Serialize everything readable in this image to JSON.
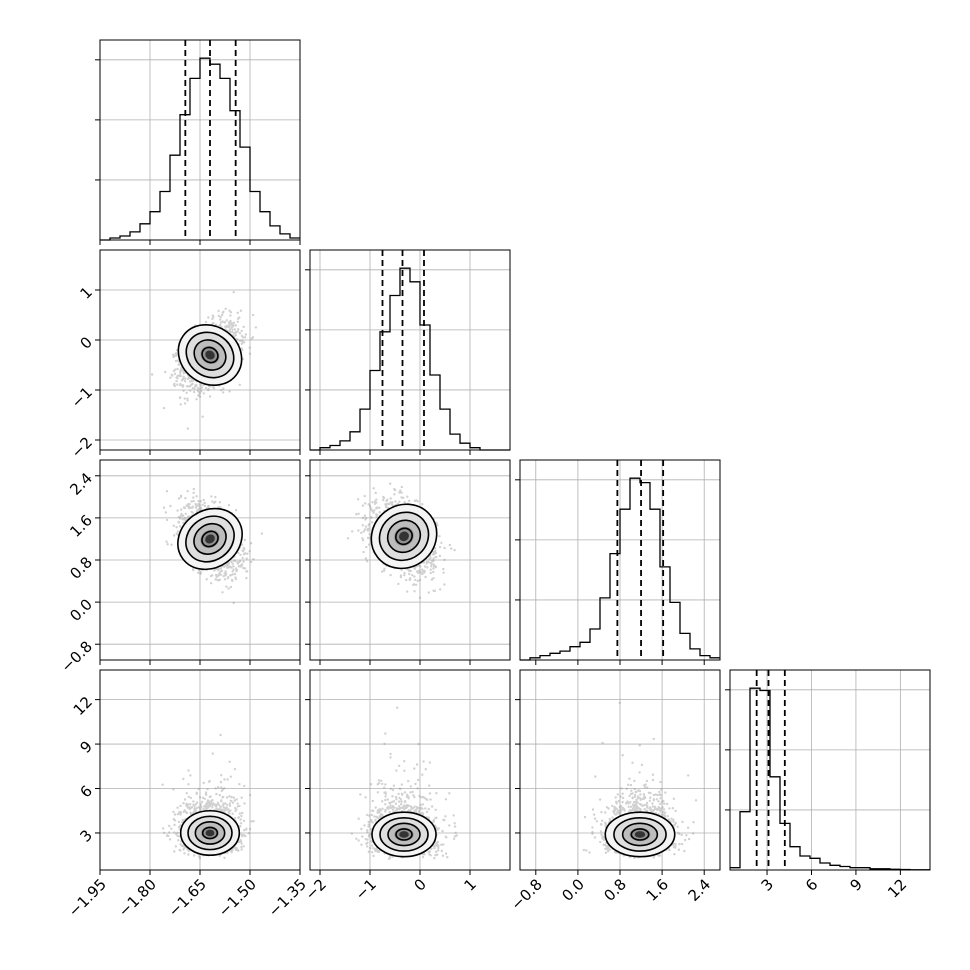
{
  "chart_data": {
    "type": "corner",
    "title": "",
    "grid": true,
    "parameters": [
      {
        "index": 0,
        "range": [
          -1.95,
          -1.35
        ],
        "ticks": [
          -1.95,
          -1.8,
          -1.65,
          -1.5,
          -1.35
        ],
        "tick_labels": [
          "−1.95",
          "−1.80",
          "−1.65",
          "−1.50",
          "−1.35"
        ],
        "quantiles": [
          -1.694,
          -1.62,
          -1.543
        ],
        "hist": {
          "edges_start": -1.95,
          "bin_width": 0.03,
          "counts": [
            0,
            1,
            2,
            4,
            8,
            14,
            24,
            42,
            62,
            80,
            90,
            87,
            80,
            64,
            46,
            24,
            14,
            7,
            3,
            1
          ]
        }
      },
      {
        "index": 1,
        "range": [
          -2.2,
          1.8
        ],
        "ticks": [
          -2,
          -1,
          0,
          1
        ],
        "tick_labels": [
          "−2",
          "−1",
          "0",
          "1"
        ],
        "quantiles": [
          -0.75,
          -0.35,
          0.08
        ],
        "hist": {
          "edges_start": -2.2,
          "bin_width": 0.2,
          "counts": [
            0,
            1,
            2,
            4,
            8,
            18,
            35,
            52,
            68,
            80,
            74,
            55,
            33,
            18,
            7,
            3,
            1,
            0,
            0,
            0
          ]
        }
      },
      {
        "index": 2,
        "range": [
          -1.1,
          2.7
        ],
        "ticks": [
          -0.8,
          0.0,
          0.8,
          1.6,
          2.4
        ],
        "tick_labels": [
          "−0.8",
          "0.0",
          "0.8",
          "1.6",
          "2.4"
        ],
        "quantiles": [
          0.75,
          1.2,
          1.62
        ],
        "hist": {
          "edges_start": -1.1,
          "bin_width": 0.19,
          "counts": [
            0,
            1,
            2,
            3,
            4,
            6,
            8,
            14,
            28,
            48,
            68,
            82,
            80,
            68,
            42,
            26,
            12,
            5,
            2,
            1
          ]
        }
      },
      {
        "index": 3,
        "range": [
          0.5,
          14.0
        ],
        "ticks": [
          3,
          6,
          9,
          12
        ],
        "tick_labels": [
          "3",
          "6",
          "9",
          "12"
        ],
        "quantiles": [
          2.3,
          3.1,
          4.2
        ],
        "hist": {
          "edges_start": 0.5,
          "bin_width": 0.675,
          "counts": [
            1,
            25,
            78,
            77,
            40,
            20,
            10,
            6,
            5,
            3,
            2,
            1.5,
            1,
            1,
            0.5,
            0.5,
            0.3,
            0.2,
            0.1,
            0.1
          ]
        }
      }
    ],
    "pairs": [
      {
        "x": 0,
        "y": 1,
        "center": [
          -1.62,
          -0.3
        ],
        "spread": [
          0.043,
          0.33
        ],
        "rho": 0.4
      },
      {
        "x": 0,
        "y": 2,
        "center": [
          -1.62,
          1.2
        ],
        "spread": [
          0.043,
          0.32
        ],
        "rho": -0.45
      },
      {
        "x": 1,
        "y": 2,
        "center": [
          -0.32,
          1.25
        ],
        "spread": [
          0.31,
          0.32
        ],
        "rho": -0.35
      },
      {
        "x": 0,
        "y": 3,
        "center": [
          -1.62,
          3.0
        ],
        "spread": [
          0.044,
          0.8
        ],
        "rho": 0.0
      },
      {
        "x": 1,
        "y": 3,
        "center": [
          -0.32,
          2.9
        ],
        "spread": [
          0.32,
          0.8
        ],
        "rho": 0.0
      },
      {
        "x": 2,
        "y": 3,
        "center": [
          1.18,
          2.9
        ],
        "spread": [
          0.33,
          0.8
        ],
        "rho": 0.0
      }
    ]
  }
}
